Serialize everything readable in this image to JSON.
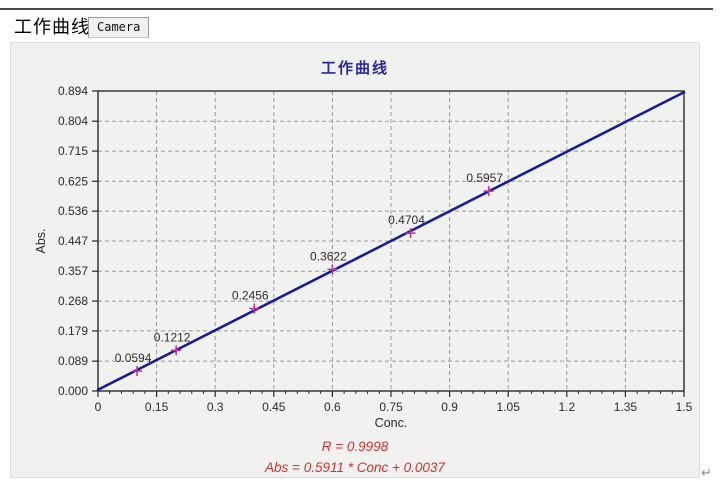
{
  "tabs": [
    {
      "label": "工作曲线",
      "active": true
    },
    {
      "label": "Camera",
      "active": false
    }
  ],
  "chart_data": {
    "type": "line",
    "title": "工作曲线",
    "xlabel": "Conc.",
    "ylabel": "Abs.",
    "xlim": [
      0,
      1.5
    ],
    "ylim": [
      0,
      0.894
    ],
    "x_ticks": [
      "0",
      "0.15",
      "0.3",
      "0.45",
      "0.6",
      "0.75",
      "0.9",
      "1.05",
      "1.2",
      "1.35",
      "1.5"
    ],
    "y_ticks": [
      "0.000",
      "0.089",
      "0.179",
      "0.268",
      "0.357",
      "0.447",
      "0.536",
      "0.625",
      "0.715",
      "0.804",
      "0.894"
    ],
    "grid": true,
    "legend": "none",
    "points": [
      {
        "x": 0.1,
        "y": 0.0594,
        "label": "0.0594"
      },
      {
        "x": 0.2,
        "y": 0.1212,
        "label": "0.1212"
      },
      {
        "x": 0.4,
        "y": 0.2456,
        "label": "0.2456"
      },
      {
        "x": 0.6,
        "y": 0.3622,
        "label": "0.3622"
      },
      {
        "x": 0.8,
        "y": 0.4704,
        "label": "0.4704"
      },
      {
        "x": 1.0,
        "y": 0.5957,
        "label": "0.5957"
      }
    ],
    "fit_line": {
      "slope": 0.5911,
      "intercept": 0.0037,
      "r": 0.9998
    },
    "colors": {
      "line": "#1b1b99",
      "marker": "#b5399b",
      "grid": "#9a9a9a",
      "axis": "#2b2b2b",
      "tick_text": "#2b2b2b",
      "title": "#2a2a94",
      "annotation": "#cc3333"
    },
    "annotations": [
      "R = 0.9998",
      "Abs = 0.5911 * Conc + 0.0037"
    ]
  },
  "footer": {
    "r_label": "R = 0.9998",
    "equation_label": "Abs = 0.5911 * Conc + 0.0037"
  },
  "misc": {
    "return_mark": "↵"
  }
}
